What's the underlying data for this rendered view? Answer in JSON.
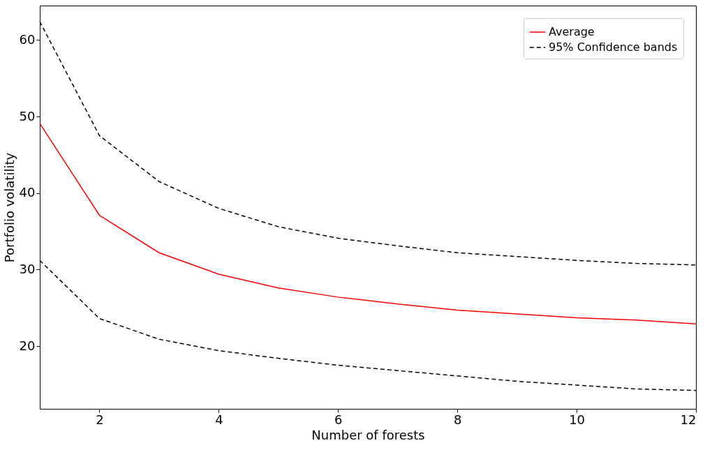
{
  "chart_data": {
    "type": "line",
    "xlabel": "Number of forests",
    "ylabel": "Portfolio volatility",
    "x": [
      1,
      2,
      3,
      4,
      5,
      6,
      7,
      8,
      9,
      10,
      11,
      12
    ],
    "xlim": [
      1,
      12
    ],
    "xticks": [
      2,
      4,
      6,
      8,
      10,
      12
    ],
    "ylim": [
      11.8,
      64.5
    ],
    "yticks": [
      20,
      30,
      40,
      50,
      60
    ],
    "grid": false,
    "legend": "top right",
    "marker": "none",
    "series": [
      {
        "name": "Average",
        "color": "#ff0000",
        "line_style": "solid",
        "values": [
          49.1,
          37.1,
          32.2,
          29.4,
          27.6,
          26.4,
          25.5,
          24.7,
          24.2,
          23.7,
          23.4,
          22.9
        ]
      },
      {
        "name": "95% Confidence bands",
        "color": "#000000",
        "line_style": "dashed",
        "values": [
          62.4,
          47.5,
          41.5,
          38.0,
          35.6,
          34.1,
          33.1,
          32.2,
          31.7,
          31.2,
          30.8,
          30.6
        ]
      },
      {
        "color": "#000000",
        "line_style": "dashed",
        "values": [
          31.2,
          23.6,
          20.9,
          19.4,
          18.4,
          17.5,
          16.8,
          16.1,
          15.4,
          14.9,
          14.4,
          14.2
        ]
      }
    ]
  }
}
